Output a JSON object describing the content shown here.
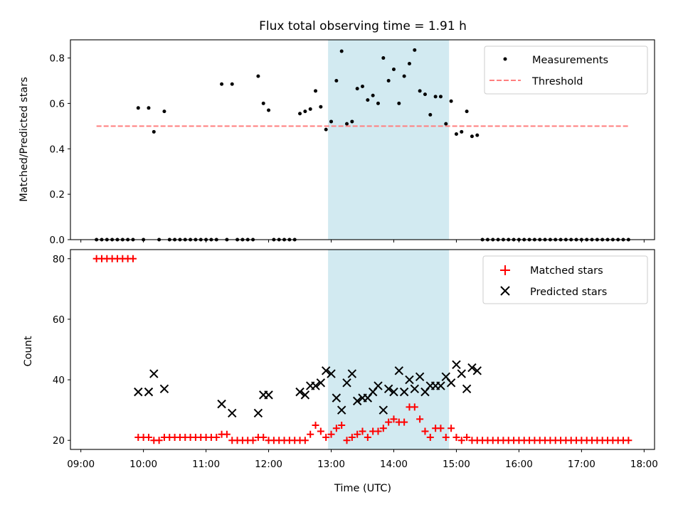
{
  "chart_data": [
    {
      "type": "scatter",
      "title": "Flux total observing time = 1.91 h",
      "xlabel": "",
      "ylabel": "Matched/Predicted stars",
      "xlim": [
        "08:50",
        "18:10"
      ],
      "ylim": [
        0,
        0.88
      ],
      "yticks": [
        "0.0",
        "0.2",
        "0.4",
        "0.6",
        "0.8"
      ],
      "legend": "top-right",
      "grid": false,
      "highlight_span": {
        "start": "12:57",
        "end": "14:53",
        "color": "#add8e6"
      },
      "series": [
        {
          "name": "Measurements",
          "marker": "dot",
          "color": "#000000",
          "points": [
            [
              "09:15",
              0
            ],
            [
              "09:20",
              0
            ],
            [
              "09:25",
              0
            ],
            [
              "09:30",
              0
            ],
            [
              "09:35",
              0
            ],
            [
              "09:40",
              0
            ],
            [
              "09:45",
              0
            ],
            [
              "09:50",
              0
            ],
            [
              "09:55",
              0.58
            ],
            [
              "10:00",
              0
            ],
            [
              "10:05",
              0.58
            ],
            [
              "10:10",
              0.475
            ],
            [
              "10:15",
              0
            ],
            [
              "10:20",
              0.565
            ],
            [
              "10:25",
              0
            ],
            [
              "10:30",
              0
            ],
            [
              "10:35",
              0
            ],
            [
              "10:40",
              0
            ],
            [
              "10:45",
              0
            ],
            [
              "10:50",
              0
            ],
            [
              "10:55",
              0
            ],
            [
              "11:00",
              0
            ],
            [
              "11:05",
              0
            ],
            [
              "11:10",
              0
            ],
            [
              "11:15",
              0.685
            ],
            [
              "11:20",
              0
            ],
            [
              "11:25",
              0.685
            ],
            [
              "11:30",
              0
            ],
            [
              "11:35",
              0
            ],
            [
              "11:40",
              0
            ],
            [
              "11:45",
              0
            ],
            [
              "11:50",
              0.72
            ],
            [
              "11:55",
              0.6
            ],
            [
              "12:00",
              0.57
            ],
            [
              "12:05",
              0
            ],
            [
              "12:10",
              0
            ],
            [
              "12:15",
              0
            ],
            [
              "12:20",
              0
            ],
            [
              "12:25",
              0
            ],
            [
              "12:30",
              0.555
            ],
            [
              "12:35",
              0.565
            ],
            [
              "12:40",
              0.575
            ],
            [
              "12:45",
              0.655
            ],
            [
              "12:50",
              0.585
            ],
            [
              "12:55",
              0.485
            ],
            [
              "13:00",
              0.52
            ],
            [
              "13:05",
              0.7
            ],
            [
              "13:10",
              0.83
            ],
            [
              "13:15",
              0.51
            ],
            [
              "13:20",
              0.52
            ],
            [
              "13:25",
              0.665
            ],
            [
              "13:30",
              0.675
            ],
            [
              "13:35",
              0.615
            ],
            [
              "13:40",
              0.635
            ],
            [
              "13:45",
              0.6
            ],
            [
              "13:50",
              0.8
            ],
            [
              "13:55",
              0.7
            ],
            [
              "14:00",
              0.75
            ],
            [
              "14:05",
              0.6
            ],
            [
              "14:10",
              0.72
            ],
            [
              "14:15",
              0.775
            ],
            [
              "14:20",
              0.835
            ],
            [
              "14:25",
              0.655
            ],
            [
              "14:30",
              0.64
            ],
            [
              "14:35",
              0.55
            ],
            [
              "14:40",
              0.63
            ],
            [
              "14:45",
              0.63
            ],
            [
              "14:50",
              0.51
            ],
            [
              "14:55",
              0.61
            ],
            [
              "15:00",
              0.465
            ],
            [
              "15:05",
              0.475
            ],
            [
              "15:10",
              0.565
            ],
            [
              "15:15",
              0.455
            ],
            [
              "15:20",
              0.46
            ],
            [
              "15:25",
              0
            ],
            [
              "15:30",
              0
            ],
            [
              "15:35",
              0
            ],
            [
              "15:40",
              0
            ],
            [
              "15:45",
              0
            ],
            [
              "15:50",
              0
            ],
            [
              "15:55",
              0
            ],
            [
              "16:00",
              0
            ],
            [
              "16:05",
              0
            ],
            [
              "16:10",
              0
            ],
            [
              "16:15",
              0
            ],
            [
              "16:20",
              0
            ],
            [
              "16:25",
              0
            ],
            [
              "16:30",
              0
            ],
            [
              "16:35",
              0
            ],
            [
              "16:40",
              0
            ],
            [
              "16:45",
              0
            ],
            [
              "16:50",
              0
            ],
            [
              "16:55",
              0
            ],
            [
              "17:00",
              0
            ],
            [
              "17:05",
              0
            ],
            [
              "17:10",
              0
            ],
            [
              "17:15",
              0
            ],
            [
              "17:20",
              0
            ],
            [
              "17:25",
              0
            ],
            [
              "17:30",
              0
            ],
            [
              "17:35",
              0
            ],
            [
              "17:40",
              0
            ],
            [
              "17:45",
              0
            ]
          ]
        },
        {
          "name": "Threshold",
          "marker": "dashed-line",
          "color": "#ff7f7f",
          "points": [
            [
              "09:15",
              0.5
            ],
            [
              "17:45",
              0.5
            ]
          ]
        }
      ]
    },
    {
      "type": "scatter",
      "title": "",
      "xlabel": "Time (UTC)",
      "ylabel": "Count",
      "xlim": [
        "08:50",
        "18:10"
      ],
      "ylim": [
        17,
        83
      ],
      "yticks": [
        "20",
        "40",
        "60",
        "80"
      ],
      "xticks": [
        "09:00",
        "10:00",
        "11:00",
        "12:00",
        "13:00",
        "14:00",
        "15:00",
        "16:00",
        "17:00",
        "18:00"
      ],
      "legend": "top-right",
      "grid": false,
      "highlight_span": {
        "start": "12:57",
        "end": "14:53",
        "color": "#add8e6"
      },
      "series": [
        {
          "name": "Matched stars",
          "marker": "plus",
          "color": "#ff0000",
          "points": [
            [
              "09:15",
              80
            ],
            [
              "09:20",
              80
            ],
            [
              "09:25",
              80
            ],
            [
              "09:30",
              80
            ],
            [
              "09:35",
              80
            ],
            [
              "09:40",
              80
            ],
            [
              "09:45",
              80
            ],
            [
              "09:50",
              80
            ],
            [
              "09:55",
              21
            ],
            [
              "10:00",
              21
            ],
            [
              "10:05",
              21
            ],
            [
              "10:10",
              20
            ],
            [
              "10:15",
              20
            ],
            [
              "10:20",
              21
            ],
            [
              "10:25",
              21
            ],
            [
              "10:30",
              21
            ],
            [
              "10:35",
              21
            ],
            [
              "10:40",
              21
            ],
            [
              "10:45",
              21
            ],
            [
              "10:50",
              21
            ],
            [
              "10:55",
              21
            ],
            [
              "11:00",
              21
            ],
            [
              "11:05",
              21
            ],
            [
              "11:10",
              21
            ],
            [
              "11:15",
              22
            ],
            [
              "11:20",
              22
            ],
            [
              "11:25",
              20
            ],
            [
              "11:30",
              20
            ],
            [
              "11:35",
              20
            ],
            [
              "11:40",
              20
            ],
            [
              "11:45",
              20
            ],
            [
              "11:50",
              21
            ],
            [
              "11:55",
              21
            ],
            [
              "12:00",
              20
            ],
            [
              "12:05",
              20
            ],
            [
              "12:10",
              20
            ],
            [
              "12:15",
              20
            ],
            [
              "12:20",
              20
            ],
            [
              "12:25",
              20
            ],
            [
              "12:30",
              20
            ],
            [
              "12:35",
              20
            ],
            [
              "12:40",
              22
            ],
            [
              "12:45",
              25
            ],
            [
              "12:50",
              23
            ],
            [
              "12:55",
              21
            ],
            [
              "13:00",
              22
            ],
            [
              "13:05",
              24
            ],
            [
              "13:10",
              25
            ],
            [
              "13:15",
              20
            ],
            [
              "13:20",
              21
            ],
            [
              "13:25",
              22
            ],
            [
              "13:30",
              23
            ],
            [
              "13:35",
              21
            ],
            [
              "13:40",
              23
            ],
            [
              "13:45",
              23
            ],
            [
              "13:50",
              24
            ],
            [
              "13:55",
              26
            ],
            [
              "14:00",
              27
            ],
            [
              "14:05",
              26
            ],
            [
              "14:10",
              26
            ],
            [
              "14:15",
              31
            ],
            [
              "14:20",
              31
            ],
            [
              "14:25",
              27
            ],
            [
              "14:30",
              23
            ],
            [
              "14:35",
              21
            ],
            [
              "14:40",
              24
            ],
            [
              "14:45",
              24
            ],
            [
              "14:50",
              21
            ],
            [
              "14:55",
              24
            ],
            [
              "15:00",
              21
            ],
            [
              "15:05",
              20
            ],
            [
              "15:10",
              21
            ],
            [
              "15:15",
              20
            ],
            [
              "15:20",
              20
            ],
            [
              "15:25",
              20
            ],
            [
              "15:30",
              20
            ],
            [
              "15:35",
              20
            ],
            [
              "15:40",
              20
            ],
            [
              "15:45",
              20
            ],
            [
              "15:50",
              20
            ],
            [
              "15:55",
              20
            ],
            [
              "16:00",
              20
            ],
            [
              "16:05",
              20
            ],
            [
              "16:10",
              20
            ],
            [
              "16:15",
              20
            ],
            [
              "16:20",
              20
            ],
            [
              "16:25",
              20
            ],
            [
              "16:30",
              20
            ],
            [
              "16:35",
              20
            ],
            [
              "16:40",
              20
            ],
            [
              "16:45",
              20
            ],
            [
              "16:50",
              20
            ],
            [
              "16:55",
              20
            ],
            [
              "17:00",
              20
            ],
            [
              "17:05",
              20
            ],
            [
              "17:10",
              20
            ],
            [
              "17:15",
              20
            ],
            [
              "17:20",
              20
            ],
            [
              "17:25",
              20
            ],
            [
              "17:30",
              20
            ],
            [
              "17:35",
              20
            ],
            [
              "17:40",
              20
            ],
            [
              "17:45",
              20
            ]
          ]
        },
        {
          "name": "Predicted stars",
          "marker": "x",
          "color": "#000000",
          "points": [
            [
              "09:55",
              36
            ],
            [
              "10:05",
              36
            ],
            [
              "10:10",
              42
            ],
            [
              "10:20",
              37
            ],
            [
              "11:15",
              32
            ],
            [
              "11:25",
              29
            ],
            [
              "11:50",
              29
            ],
            [
              "11:55",
              35
            ],
            [
              "12:00",
              35
            ],
            [
              "12:30",
              36
            ],
            [
              "12:35",
              35
            ],
            [
              "12:40",
              38
            ],
            [
              "12:45",
              38
            ],
            [
              "12:50",
              39
            ],
            [
              "12:55",
              43
            ],
            [
              "13:00",
              42
            ],
            [
              "13:05",
              34
            ],
            [
              "13:10",
              30
            ],
            [
              "13:15",
              39
            ],
            [
              "13:20",
              42
            ],
            [
              "13:25",
              33
            ],
            [
              "13:30",
              34
            ],
            [
              "13:35",
              34
            ],
            [
              "13:40",
              36
            ],
            [
              "13:45",
              38
            ],
            [
              "13:50",
              30
            ],
            [
              "13:55",
              37
            ],
            [
              "14:00",
              36
            ],
            [
              "14:05",
              43
            ],
            [
              "14:10",
              36
            ],
            [
              "14:15",
              40
            ],
            [
              "14:20",
              37
            ],
            [
              "14:25",
              41
            ],
            [
              "14:30",
              36
            ],
            [
              "14:35",
              38
            ],
            [
              "14:40",
              38
            ],
            [
              "14:45",
              38
            ],
            [
              "14:50",
              41
            ],
            [
              "14:55",
              39
            ],
            [
              "15:00",
              45
            ],
            [
              "15:05",
              42
            ],
            [
              "15:10",
              37
            ],
            [
              "15:15",
              44
            ],
            [
              "15:20",
              43
            ]
          ]
        }
      ]
    }
  ]
}
